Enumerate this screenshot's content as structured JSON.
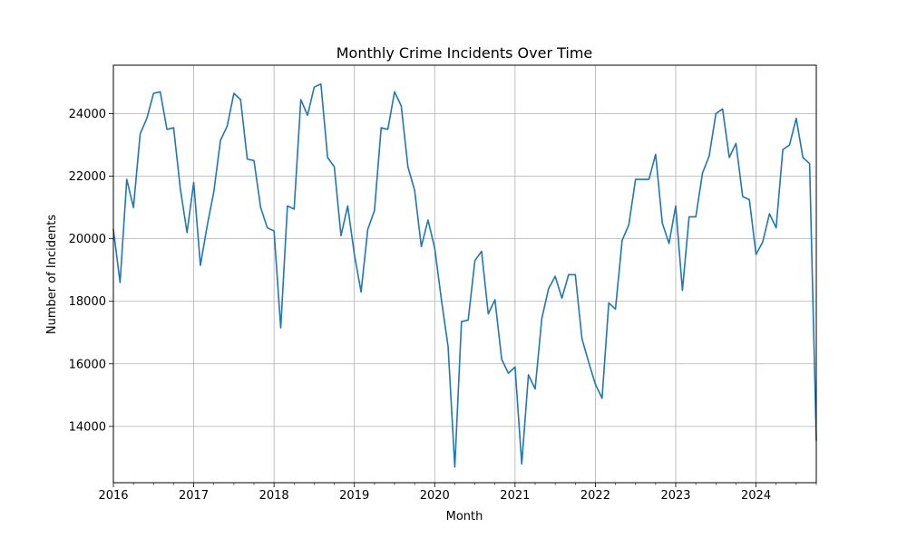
{
  "chart_data": {
    "type": "line",
    "title": "Monthly Crime Incidents Over Time",
    "xlabel": "Month",
    "ylabel": "Number of Incidents",
    "grid": true,
    "line_color": "#1f77b4",
    "x_tick_labels": [
      "2016",
      "2017",
      "2018",
      "2019",
      "2020",
      "2021",
      "2022",
      "2023",
      "2024"
    ],
    "y_tick_labels": [
      "14000",
      "16000",
      "18000",
      "20000",
      "22000",
      "24000"
    ],
    "xlim": [
      "2016-01",
      "2024-10"
    ],
    "ylim": [
      12200,
      25550
    ],
    "series": [
      {
        "x": [
          "2016-01",
          "2016-02",
          "2016-03",
          "2016-04",
          "2016-05",
          "2016-06",
          "2016-07",
          "2016-08",
          "2016-09",
          "2016-10",
          "2016-11",
          "2016-12",
          "2017-01",
          "2017-02",
          "2017-03",
          "2017-04",
          "2017-05",
          "2017-06",
          "2017-07",
          "2017-08",
          "2017-09",
          "2017-10",
          "2017-11",
          "2017-12",
          "2018-01",
          "2018-02",
          "2018-03",
          "2018-04",
          "2018-05",
          "2018-06",
          "2018-07",
          "2018-08",
          "2018-09",
          "2018-10",
          "2018-11",
          "2018-12",
          "2019-01",
          "2019-02",
          "2019-03",
          "2019-04",
          "2019-05",
          "2019-06",
          "2019-07",
          "2019-08",
          "2019-09",
          "2019-10",
          "2019-11",
          "2019-12",
          "2020-01",
          "2020-02",
          "2020-03",
          "2020-04",
          "2020-05",
          "2020-06",
          "2020-07",
          "2020-08",
          "2020-09",
          "2020-10",
          "2020-11",
          "2020-12",
          "2021-01",
          "2021-02",
          "2021-03",
          "2021-04",
          "2021-05",
          "2021-06",
          "2021-07",
          "2021-08",
          "2021-09",
          "2021-10",
          "2021-11",
          "2021-12",
          "2022-01",
          "2022-02",
          "2022-03",
          "2022-04",
          "2022-05",
          "2022-06",
          "2022-07",
          "2022-08",
          "2022-09",
          "2022-10",
          "2022-11",
          "2022-12",
          "2023-01",
          "2023-02",
          "2023-03",
          "2023-04",
          "2023-05",
          "2023-06",
          "2023-07",
          "2023-08",
          "2023-09",
          "2023-10",
          "2023-11",
          "2023-12",
          "2024-01",
          "2024-02",
          "2024-03",
          "2024-04",
          "2024-05",
          "2024-06",
          "2024-07",
          "2024-08",
          "2024-09",
          "2024-10"
        ],
        "values": [
          20300,
          18600,
          21900,
          21000,
          23350,
          23850,
          24650,
          24700,
          23500,
          23550,
          21600,
          20200,
          21800,
          19150,
          20400,
          21500,
          23150,
          23600,
          24650,
          24450,
          22550,
          22500,
          21000,
          20350,
          20250,
          17150,
          21050,
          20950,
          24450,
          23950,
          24850,
          24950,
          22600,
          22300,
          20100,
          21050,
          19500,
          18300,
          20300,
          20900,
          23550,
          23500,
          24700,
          24250,
          22300,
          21550,
          19750,
          20600,
          19700,
          18050,
          16550,
          12700,
          17350,
          17400,
          19300,
          19600,
          17600,
          18050,
          16150,
          15700,
          15900,
          12800,
          15650,
          15200,
          17450,
          18400,
          18800,
          18100,
          18850,
          18850,
          16800,
          16050,
          15350,
          14900,
          17950,
          17750,
          19950,
          20450,
          21900,
          21900,
          21900,
          22700,
          20500,
          19850,
          21050,
          18350,
          20700,
          20700,
          22100,
          22650,
          24000,
          24150,
          22600,
          23050,
          21350,
          21250,
          19500,
          19900,
          20800,
          20350,
          22850,
          23000,
          23850,
          22600,
          22400,
          13550
        ]
      }
    ]
  }
}
